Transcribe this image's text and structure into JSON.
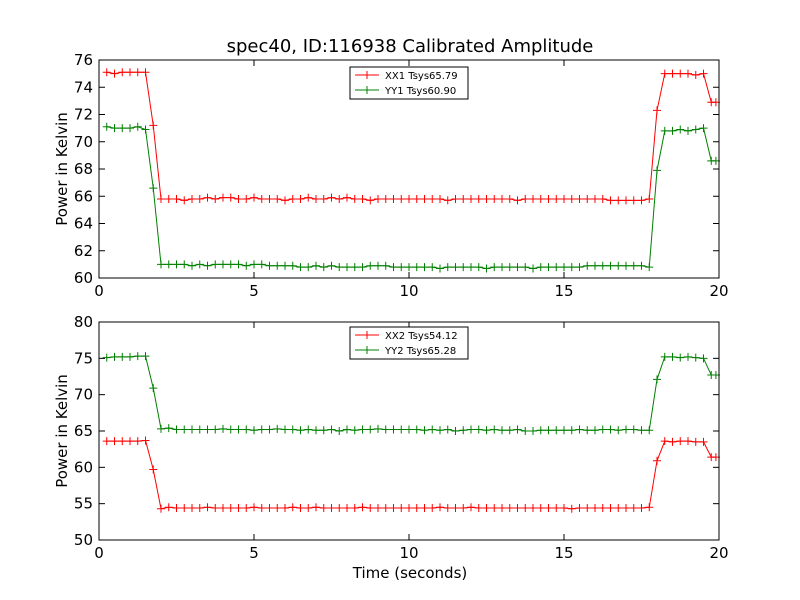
{
  "chart_data": [
    {
      "type": "line",
      "title": "spec40, ID:116938 Calibrated Amplitude",
      "xlabel": "",
      "ylabel": "Power in Kelvin",
      "xlim": [
        0,
        20
      ],
      "ylim": [
        60,
        76
      ],
      "xticks": [
        "0",
        "5",
        "10",
        "15",
        "20"
      ],
      "yticks": [
        "60",
        "62",
        "64",
        "66",
        "68",
        "70",
        "72",
        "74",
        "76"
      ],
      "grid": false,
      "legend_placement": "top-center",
      "x": [
        0.25,
        0.5,
        0.75,
        1.0,
        1.25,
        1.5,
        1.75,
        2.0,
        2.25,
        2.5,
        2.75,
        3.0,
        3.25,
        3.5,
        3.75,
        4.0,
        4.25,
        4.5,
        4.75,
        5.0,
        5.25,
        5.5,
        5.75,
        6.0,
        6.25,
        6.5,
        6.75,
        7.0,
        7.25,
        7.5,
        7.75,
        8.0,
        8.25,
        8.5,
        8.75,
        9.0,
        9.25,
        9.5,
        9.75,
        10.0,
        10.25,
        10.5,
        10.75,
        11.0,
        11.25,
        11.5,
        11.75,
        12.0,
        12.25,
        12.5,
        12.75,
        13.0,
        13.25,
        13.5,
        13.75,
        14.0,
        14.25,
        14.5,
        14.75,
        15.0,
        15.25,
        15.5,
        15.75,
        16.0,
        16.25,
        16.5,
        16.75,
        17.0,
        17.25,
        17.5,
        17.75,
        18.0,
        18.25,
        18.5,
        18.75,
        19.0,
        19.25,
        19.5,
        19.75,
        19.9
      ],
      "series": [
        {
          "name": "XX1 Tsys65.79",
          "color": "#ff0000",
          "values": [
            75.1,
            75.0,
            75.1,
            75.1,
            75.1,
            75.1,
            71.2,
            65.8,
            65.8,
            65.8,
            65.7,
            65.8,
            65.8,
            65.9,
            65.8,
            65.9,
            65.9,
            65.8,
            65.8,
            65.9,
            65.8,
            65.8,
            65.8,
            65.7,
            65.8,
            65.8,
            65.9,
            65.8,
            65.8,
            65.9,
            65.8,
            65.9,
            65.8,
            65.8,
            65.7,
            65.8,
            65.8,
            65.8,
            65.8,
            65.8,
            65.8,
            65.8,
            65.8,
            65.8,
            65.7,
            65.8,
            65.8,
            65.8,
            65.8,
            65.8,
            65.8,
            65.8,
            65.8,
            65.7,
            65.8,
            65.8,
            65.8,
            65.8,
            65.8,
            65.8,
            65.8,
            65.8,
            65.8,
            65.8,
            65.8,
            65.7,
            65.7,
            65.7,
            65.7,
            65.7,
            65.8,
            72.3,
            75.0,
            75.0,
            75.0,
            75.0,
            74.9,
            75.0,
            72.9,
            72.9
          ]
        },
        {
          "name": "YY1 Tsys60.90",
          "color": "#008000",
          "values": [
            71.1,
            71.0,
            71.0,
            71.0,
            71.1,
            70.9,
            66.6,
            61.0,
            61.0,
            61.0,
            61.0,
            60.9,
            61.0,
            60.9,
            61.0,
            61.0,
            61.0,
            61.0,
            60.9,
            61.0,
            61.0,
            60.9,
            60.9,
            60.9,
            60.9,
            60.8,
            60.8,
            60.9,
            60.8,
            60.9,
            60.8,
            60.8,
            60.8,
            60.8,
            60.9,
            60.9,
            60.9,
            60.8,
            60.8,
            60.8,
            60.8,
            60.8,
            60.8,
            60.7,
            60.8,
            60.8,
            60.8,
            60.8,
            60.8,
            60.7,
            60.8,
            60.8,
            60.8,
            60.8,
            60.8,
            60.7,
            60.8,
            60.8,
            60.8,
            60.8,
            60.8,
            60.8,
            60.9,
            60.9,
            60.9,
            60.9,
            60.9,
            60.9,
            60.9,
            60.9,
            60.8,
            67.9,
            70.8,
            70.8,
            70.9,
            70.8,
            70.9,
            71.0,
            68.6,
            68.6
          ]
        }
      ]
    },
    {
      "type": "line",
      "title": "",
      "xlabel": "Time (seconds)",
      "ylabel": "Power in Kelvin",
      "xlim": [
        0,
        20
      ],
      "ylim": [
        50,
        80
      ],
      "xticks": [
        "0",
        "5",
        "10",
        "15",
        "20"
      ],
      "yticks": [
        "50",
        "55",
        "60",
        "65",
        "70",
        "75",
        "80"
      ],
      "grid": false,
      "legend_placement": "top-center",
      "x": [
        0.25,
        0.5,
        0.75,
        1.0,
        1.25,
        1.5,
        1.75,
        2.0,
        2.25,
        2.5,
        2.75,
        3.0,
        3.25,
        3.5,
        3.75,
        4.0,
        4.25,
        4.5,
        4.75,
        5.0,
        5.25,
        5.5,
        5.75,
        6.0,
        6.25,
        6.5,
        6.75,
        7.0,
        7.25,
        7.5,
        7.75,
        8.0,
        8.25,
        8.5,
        8.75,
        9.0,
        9.25,
        9.5,
        9.75,
        10.0,
        10.25,
        10.5,
        10.75,
        11.0,
        11.25,
        11.5,
        11.75,
        12.0,
        12.25,
        12.5,
        12.75,
        13.0,
        13.25,
        13.5,
        13.75,
        14.0,
        14.25,
        14.5,
        14.75,
        15.0,
        15.25,
        15.5,
        15.75,
        16.0,
        16.25,
        16.5,
        16.75,
        17.0,
        17.25,
        17.5,
        17.75,
        18.0,
        18.25,
        18.5,
        18.75,
        19.0,
        19.25,
        19.5,
        19.75,
        19.9
      ],
      "series": [
        {
          "name": "XX2 Tsys54.12",
          "color": "#ff0000",
          "values": [
            63.6,
            63.6,
            63.6,
            63.6,
            63.6,
            63.7,
            59.7,
            54.3,
            54.5,
            54.4,
            54.4,
            54.4,
            54.4,
            54.5,
            54.4,
            54.4,
            54.4,
            54.4,
            54.4,
            54.5,
            54.4,
            54.4,
            54.4,
            54.4,
            54.5,
            54.4,
            54.4,
            54.5,
            54.4,
            54.4,
            54.4,
            54.4,
            54.4,
            54.5,
            54.4,
            54.4,
            54.4,
            54.4,
            54.4,
            54.4,
            54.4,
            54.4,
            54.4,
            54.5,
            54.4,
            54.4,
            54.4,
            54.5,
            54.4,
            54.4,
            54.4,
            54.4,
            54.4,
            54.4,
            54.4,
            54.4,
            54.4,
            54.4,
            54.4,
            54.4,
            54.3,
            54.4,
            54.4,
            54.4,
            54.4,
            54.4,
            54.4,
            54.4,
            54.4,
            54.4,
            54.5,
            60.9,
            63.6,
            63.5,
            63.6,
            63.6,
            63.5,
            63.5,
            61.4,
            61.4
          ]
        },
        {
          "name": "YY2 Tsys65.28",
          "color": "#008000",
          "values": [
            75.1,
            75.2,
            75.2,
            75.2,
            75.3,
            75.3,
            70.9,
            65.3,
            65.4,
            65.2,
            65.2,
            65.2,
            65.2,
            65.2,
            65.2,
            65.3,
            65.2,
            65.2,
            65.2,
            65.1,
            65.2,
            65.2,
            65.3,
            65.2,
            65.2,
            65.1,
            65.2,
            65.1,
            65.1,
            65.2,
            65.0,
            65.2,
            65.1,
            65.2,
            65.2,
            65.3,
            65.2,
            65.2,
            65.2,
            65.2,
            65.2,
            65.1,
            65.2,
            65.1,
            65.2,
            65.0,
            65.1,
            65.2,
            65.2,
            65.1,
            65.2,
            65.1,
            65.1,
            65.2,
            65.0,
            65.0,
            65.1,
            65.1,
            65.1,
            65.1,
            65.1,
            65.2,
            65.1,
            65.1,
            65.2,
            65.2,
            65.1,
            65.2,
            65.2,
            65.1,
            65.1,
            72.1,
            75.2,
            75.2,
            75.1,
            75.2,
            75.1,
            75.0,
            72.7,
            72.7
          ]
        }
      ]
    }
  ]
}
